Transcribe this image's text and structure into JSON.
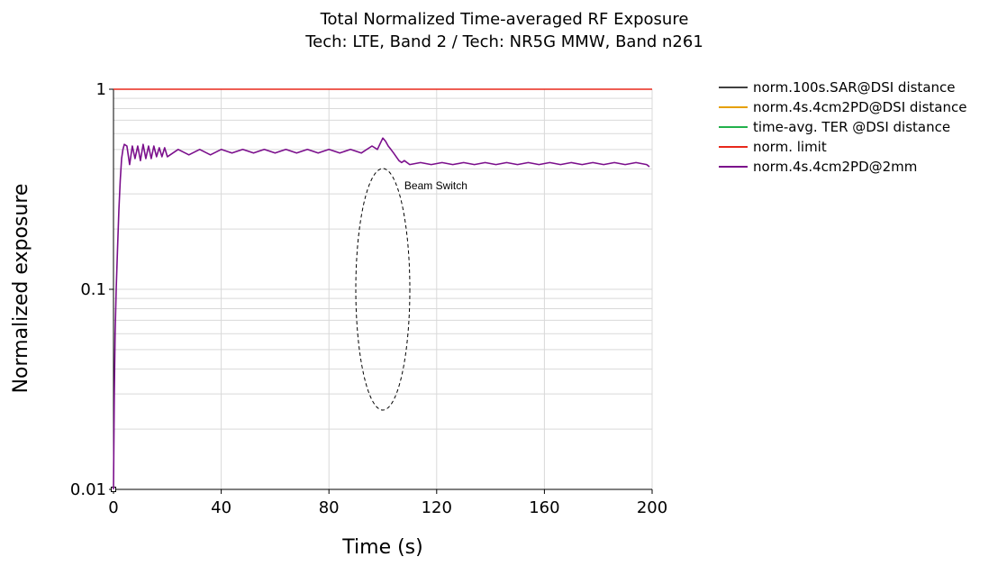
{
  "chart_data": {
    "type": "line",
    "title": "Total Normalized Time-averaged RF Exposure",
    "subtitle": "Tech: LTE, Band 2 / Tech: NR5G MMW, Band n261",
    "xlabel": "Time (s)",
    "ylabel": "Normalized exposure",
    "xlim": [
      0,
      200
    ],
    "ylim": [
      0.01,
      1
    ],
    "yscale": "log",
    "x_ticks": [
      0,
      40,
      80,
      120,
      160,
      200
    ],
    "x_tick_labels": [
      "0",
      "40",
      "80",
      "120",
      "160",
      "200"
    ],
    "y_ticks": [
      0.01,
      0.1,
      1
    ],
    "y_tick_labels": [
      "0.01",
      "0.1",
      "1"
    ],
    "grid": true,
    "legend_position": "right",
    "series": [
      {
        "name": "norm.100s.SAR@DSI distance",
        "color": "#404040",
        "x": [],
        "y": []
      },
      {
        "name": "norm.4s.4cm2PD@DSI distance",
        "color": "#e6a000",
        "x": [],
        "y": []
      },
      {
        "name": "time-avg. TER @DSI distance",
        "color": "#22b14c",
        "x": [],
        "y": []
      },
      {
        "name": "norm. limit",
        "color": "#e8291c",
        "x": [
          0,
          200
        ],
        "y": [
          1,
          1
        ]
      },
      {
        "name": "norm.4s.4cm2PD@2mm",
        "color": "#7b0f8c",
        "x": [
          0,
          0.3,
          0.6,
          1,
          1.5,
          2,
          2.5,
          3,
          3.5,
          4,
          5,
          6,
          7,
          8,
          9,
          10,
          11,
          12,
          13,
          14,
          15,
          16,
          17,
          18,
          19,
          20,
          24,
          28,
          32,
          36,
          40,
          44,
          48,
          52,
          56,
          60,
          64,
          68,
          72,
          76,
          80,
          84,
          88,
          92,
          96,
          98,
          100,
          101,
          102,
          103,
          104,
          105,
          106,
          107,
          108,
          110,
          114,
          118,
          122,
          126,
          130,
          134,
          138,
          142,
          146,
          150,
          154,
          158,
          162,
          166,
          170,
          174,
          178,
          182,
          186,
          190,
          194,
          198,
          199
        ],
        "y": [
          0.01,
          0.03,
          0.06,
          0.1,
          0.16,
          0.25,
          0.35,
          0.45,
          0.5,
          0.53,
          0.52,
          0.42,
          0.52,
          0.45,
          0.52,
          0.44,
          0.53,
          0.45,
          0.52,
          0.45,
          0.52,
          0.46,
          0.51,
          0.46,
          0.51,
          0.46,
          0.5,
          0.47,
          0.5,
          0.47,
          0.5,
          0.48,
          0.5,
          0.48,
          0.5,
          0.48,
          0.5,
          0.48,
          0.5,
          0.48,
          0.5,
          0.48,
          0.5,
          0.48,
          0.52,
          0.5,
          0.57,
          0.55,
          0.52,
          0.5,
          0.48,
          0.46,
          0.44,
          0.43,
          0.44,
          0.42,
          0.43,
          0.42,
          0.43,
          0.42,
          0.43,
          0.42,
          0.43,
          0.42,
          0.43,
          0.42,
          0.43,
          0.42,
          0.43,
          0.42,
          0.43,
          0.42,
          0.43,
          0.42,
          0.43,
          0.42,
          0.43,
          0.42,
          0.41
        ]
      }
    ],
    "annotations": [
      {
        "text": "Beam Switch",
        "x": 108,
        "y": 0.33,
        "shape": "dashed-ellipse",
        "center_x": 100,
        "center_y": 0.1
      }
    ]
  }
}
